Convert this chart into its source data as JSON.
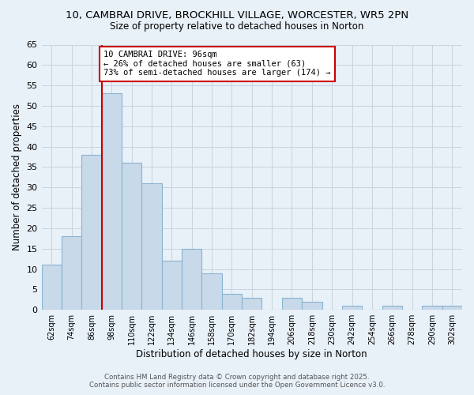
{
  "title_line1": "10, CAMBRAI DRIVE, BROCKHILL VILLAGE, WORCESTER, WR5 2PN",
  "title_line2": "Size of property relative to detached houses in Norton",
  "xlabel": "Distribution of detached houses by size in Norton",
  "ylabel": "Number of detached properties",
  "bar_labels": [
    "62sqm",
    "74sqm",
    "86sqm",
    "98sqm",
    "110sqm",
    "122sqm",
    "134sqm",
    "146sqm",
    "158sqm",
    "170sqm",
    "182sqm",
    "194sqm",
    "206sqm",
    "218sqm",
    "230sqm",
    "242sqm",
    "254sqm",
    "266sqm",
    "278sqm",
    "290sqm",
    "302sqm"
  ],
  "bar_values": [
    11,
    18,
    38,
    53,
    36,
    31,
    12,
    15,
    9,
    4,
    3,
    0,
    3,
    2,
    0,
    1,
    0,
    1,
    0,
    1,
    1
  ],
  "bar_color": "#c8d9ea",
  "bar_edge_color": "#8ab4d0",
  "ylim": [
    0,
    65
  ],
  "yticks": [
    0,
    5,
    10,
    15,
    20,
    25,
    30,
    35,
    40,
    45,
    50,
    55,
    60,
    65
  ],
  "vline_index": 3,
  "vline_color": "#cc0000",
  "annotation_text": "10 CAMBRAI DRIVE: 96sqm\n← 26% of detached houses are smaller (63)\n73% of semi-detached houses are larger (174) →",
  "annotation_box_color": "#ffffff",
  "annotation_box_edge": "#cc0000",
  "grid_color": "#c8d4de",
  "background_color": "#e8f0f8",
  "footer_line1": "Contains HM Land Registry data © Crown copyright and database right 2025.",
  "footer_line2": "Contains public sector information licensed under the Open Government Licence v3.0."
}
